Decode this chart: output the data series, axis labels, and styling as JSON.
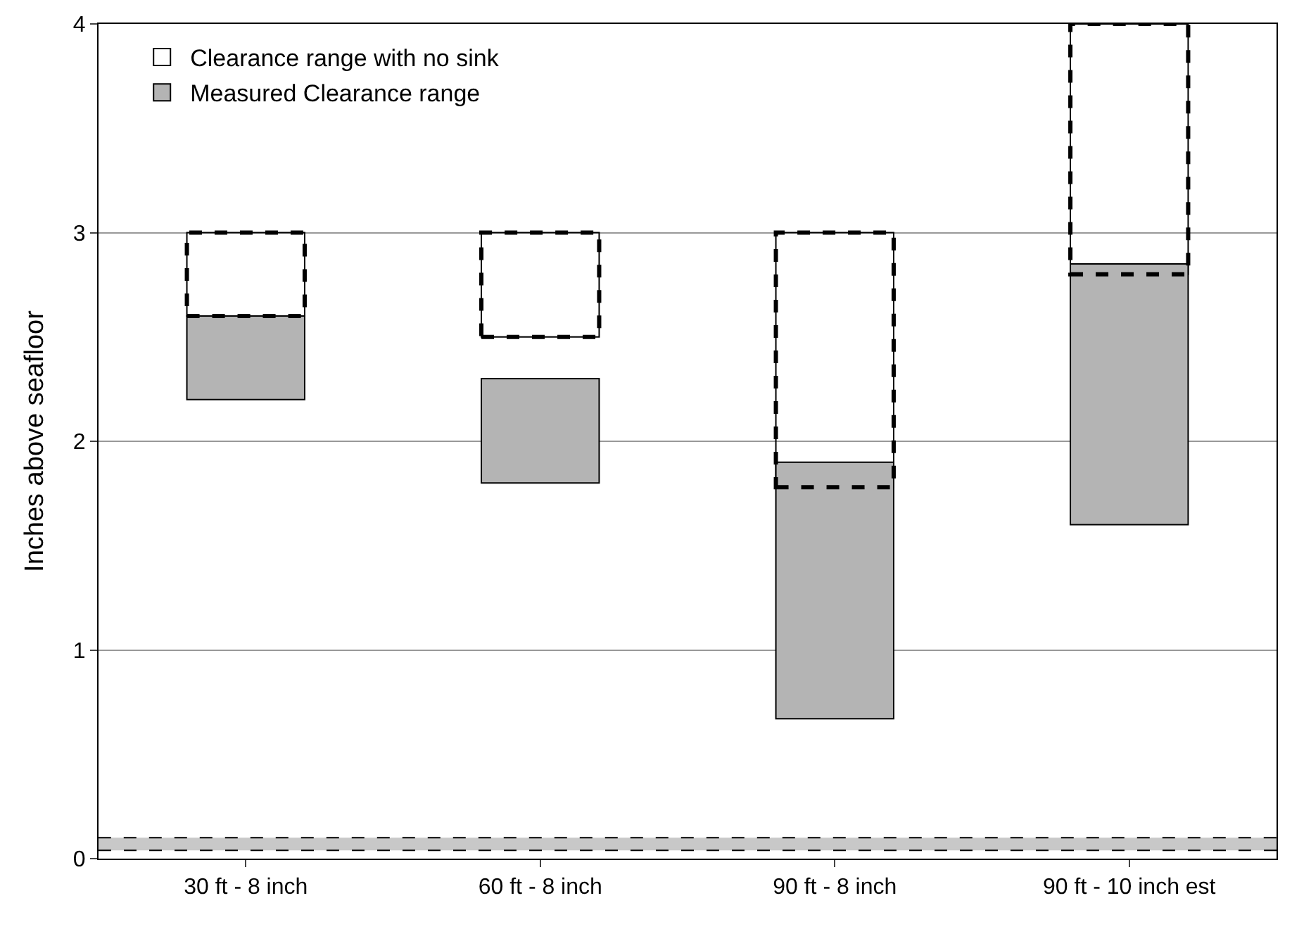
{
  "chart_data": {
    "type": "bar",
    "ylabel": "Inches above seafloor",
    "categories": [
      "30 ft - 8 inch",
      "60 ft - 8 inch",
      "90 ft - 8 inch",
      "90 ft - 10 inch est"
    ],
    "series": [
      {
        "name": "Clearance range with no sink",
        "color": "#000000",
        "line_style": "dashed",
        "base": [
          2.6,
          2.5,
          1.78,
          2.8
        ],
        "values": [
          0.4,
          0.5,
          1.22,
          1.2
        ]
      },
      {
        "name": "Measured Clearance range",
        "color": "#b4b4b4",
        "base": [
          2.2,
          1.8,
          0.67,
          1.6
        ],
        "values": [
          0.4,
          0.5,
          1.23,
          1.25
        ]
      }
    ],
    "bands": [
      {
        "axis": "y",
        "from": 0.04,
        "to": 0.1,
        "color": "#c8c8c8"
      }
    ],
    "ylim": [
      0,
      4
    ],
    "yticks": [
      0,
      1,
      2,
      3,
      4
    ],
    "grid": "y",
    "legend": "top left"
  }
}
